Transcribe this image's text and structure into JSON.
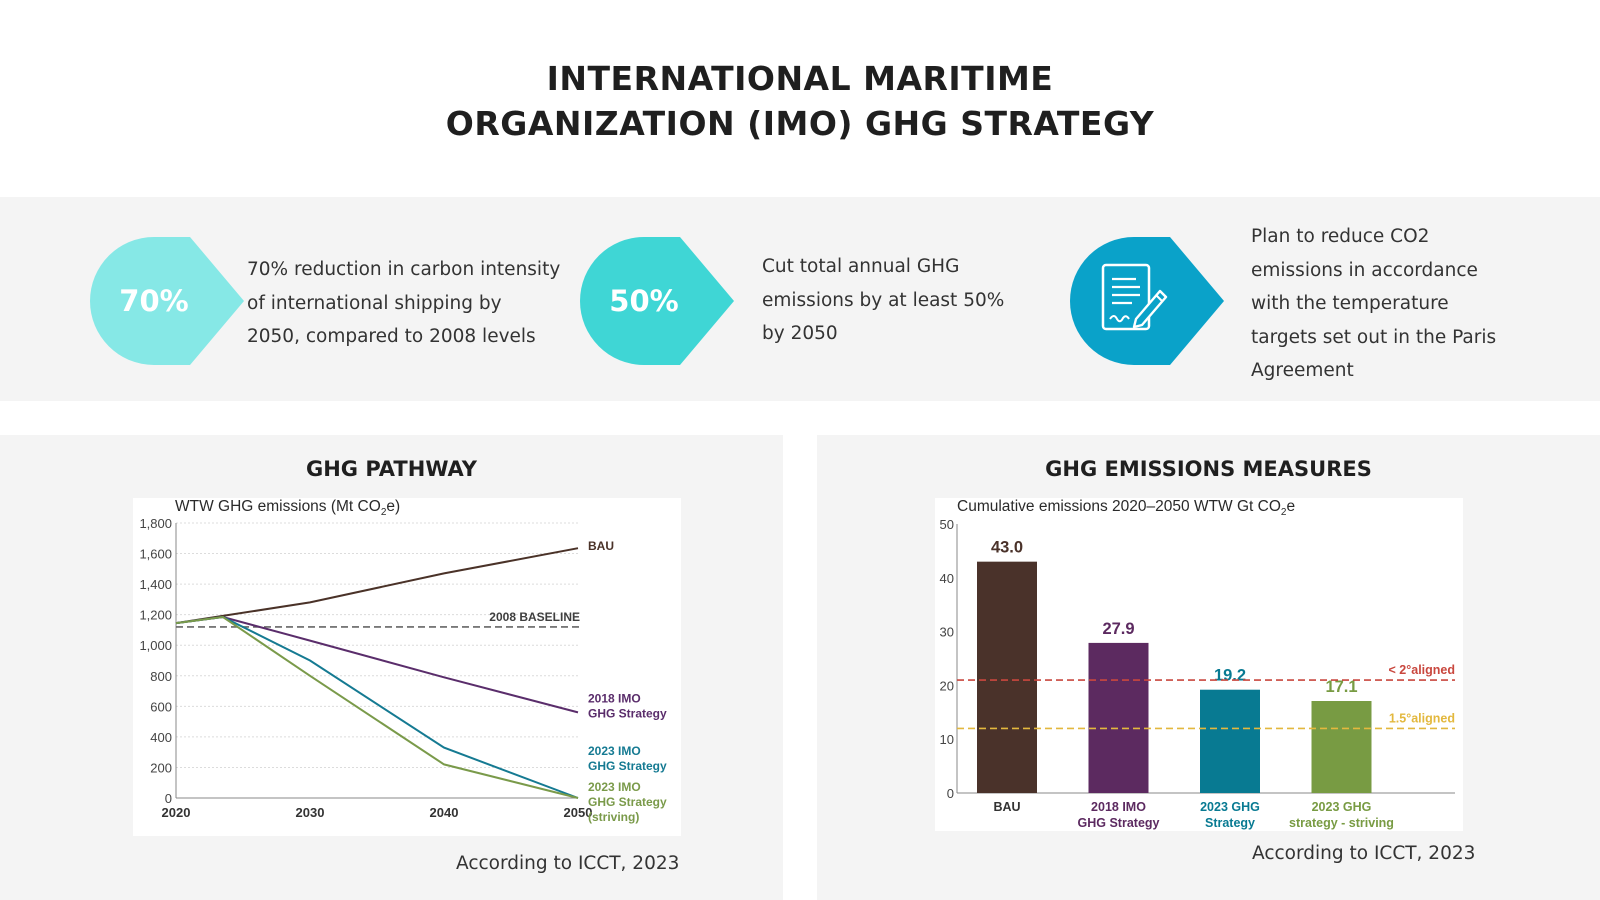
{
  "page": {
    "title_line1": "INTERNATIONAL MARITIME",
    "title_line2": "ORGANIZATION (IMO) GHG STRATEGY"
  },
  "features": [
    {
      "badge": "70%",
      "color": "#86e8e6",
      "text_lines": [
        "70% reduction in carbon intensity",
        "of international shipping by",
        "2050, compared to 2008 levels"
      ]
    },
    {
      "badge": "50%",
      "color": "#3fd6d5",
      "text_lines": [
        "Cut total annual GHG",
        "emissions by at least 50%",
        "by 2050"
      ]
    },
    {
      "badge": "",
      "icon": "document-signature-icon",
      "color": "#0aa2c9",
      "text_lines": [
        "Plan to reduce CO2",
        "emissions in accordance",
        "with the temperature",
        "targets set out in the Paris",
        "Agreement"
      ]
    }
  ],
  "panels": {
    "left": {
      "title": "GHG PATHWAY",
      "source": "According to ICCT, 2023"
    },
    "right": {
      "title": "GHG EMISSIONS MEASURES",
      "source": "According to ICCT, 2023"
    }
  },
  "chart_data": [
    {
      "type": "line",
      "ylabel": "WTW GHG emissions (Mt CO2e)",
      "ylabel_main": "WTW GHG emissions (Mt CO",
      "ylabel_sub": "2",
      "ylabel_end": "e)",
      "ylim": [
        0,
        1800
      ],
      "xlim": [
        2020,
        2050
      ],
      "yticks": [
        0,
        200,
        400,
        600,
        800,
        1000,
        1200,
        1400,
        1600,
        1800
      ],
      "ytick_labels": [
        "0",
        "200",
        "400",
        "600",
        "800",
        "1,000",
        "1,200",
        "1,400",
        "1,600",
        "1,800"
      ],
      "xticks": [
        "2020",
        "2030",
        "2040",
        "2050"
      ],
      "grid": true,
      "baseline": {
        "label": "2008 BASELINE",
        "value": 1120
      },
      "series": [
        {
          "name": "BAU",
          "label_lines": [
            "BAU"
          ],
          "color": "#4a3228",
          "x": [
            2020,
            2030,
            2040,
            2050
          ],
          "y": [
            1145,
            1280,
            1470,
            1635
          ]
        },
        {
          "name": "2018 IMO GHG Strategy",
          "label_lines": [
            "2018 IMO",
            "GHG Strategy"
          ],
          "color": "#5a2d6b",
          "x": [
            2020,
            2023.5,
            2030,
            2040,
            2050
          ],
          "y": [
            1145,
            1185,
            1030,
            790,
            560
          ]
        },
        {
          "name": "2023 IMO GHG Strategy",
          "label_lines": [
            "2023 IMO",
            "GHG Strategy"
          ],
          "color": "#157a92",
          "x": [
            2020,
            2023.5,
            2030,
            2040,
            2050
          ],
          "y": [
            1145,
            1185,
            900,
            330,
            0
          ]
        },
        {
          "name": "2023 IMO GHG Strategy (striving)",
          "label_lines": [
            "2023 IMO",
            "GHG Strategy",
            "(striving)"
          ],
          "color": "#7a9a4a",
          "x": [
            2020,
            2023.5,
            2030,
            2040,
            2050
          ],
          "y": [
            1145,
            1185,
            800,
            220,
            0
          ]
        }
      ]
    },
    {
      "type": "bar",
      "ylabel": "Cumulative emissions 2020–2050 WTW Gt CO2e",
      "ylabel_main": "Cumulative emissions 2020–2050 WTW Gt CO",
      "ylabel_sub": "2",
      "ylabel_end": "e",
      "ylim": [
        0,
        50
      ],
      "yticks": [
        "0",
        "10",
        "20",
        "30",
        "40",
        "50"
      ],
      "bars": [
        {
          "category_lines": [
            "BAU"
          ],
          "value": 43.0,
          "label": "43.0",
          "color": "#4a322a",
          "label_color": "#4a322a"
        },
        {
          "category_lines": [
            "2018 IMO",
            "GHG Strategy"
          ],
          "value": 27.9,
          "label": "27.9",
          "color": "#5c2a60",
          "label_color": "#5c2a60"
        },
        {
          "category_lines": [
            "2023 GHG",
            "Strategy"
          ],
          "value": 19.2,
          "label": "19.2",
          "color": "#087a92",
          "label_color": "#087a92"
        },
        {
          "category_lines": [
            "2023 GHG",
            "strategy - striving"
          ],
          "value": 17.1,
          "label": "17.1",
          "color": "#789b43",
          "label_color": "#789b43"
        }
      ],
      "reference_lines": [
        {
          "label": "< 2°aligned",
          "value": 21,
          "color": "#c9473e"
        },
        {
          "label": "1.5°aligned",
          "value": 12,
          "color": "#e3b83e"
        }
      ]
    }
  ]
}
